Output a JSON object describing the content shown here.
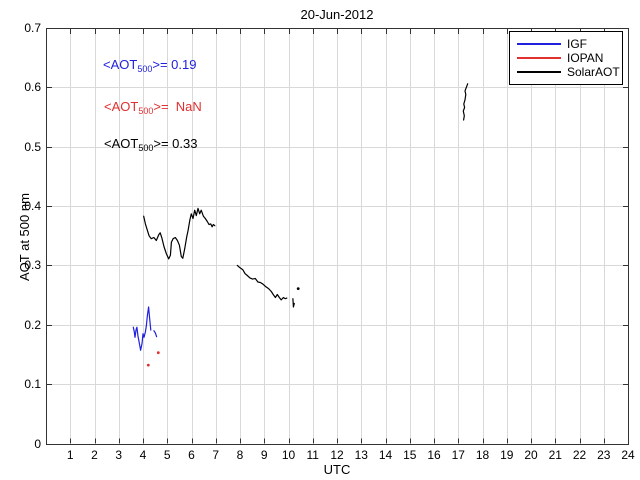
{
  "chart_data": {
    "type": "line",
    "title": "20-Jun-2012",
    "xlabel": "UTC",
    "ylabel": "AOT at 500 nm",
    "xlim": [
      0,
      24
    ],
    "ylim": [
      0,
      0.7
    ],
    "x_ticks": [
      1,
      2,
      3,
      4,
      5,
      6,
      7,
      8,
      9,
      10,
      11,
      12,
      13,
      14,
      15,
      16,
      17,
      18,
      19,
      20,
      21,
      22,
      23,
      24
    ],
    "y_ticks": [
      0,
      0.1,
      0.2,
      0.3,
      0.4,
      0.5,
      0.6,
      0.7
    ],
    "y_tick_labels": [
      "0",
      "0.1",
      "0.2",
      "0.3",
      "0.4",
      "0.5",
      "0.6",
      "0.7"
    ],
    "grid": true,
    "grid_color": "#d9d9d9",
    "axis_color": "#333333",
    "legend": {
      "position": "top-right",
      "items": [
        "IGF",
        "IOPAN",
        "SolarAOT"
      ]
    },
    "series": [
      {
        "name": "IGF",
        "color": "#2020dd",
        "segments": [
          [
            [
              3.6,
              0.196
            ],
            [
              3.64,
              0.188
            ],
            [
              3.67,
              0.179
            ],
            [
              3.71,
              0.191
            ],
            [
              3.75,
              0.196
            ],
            [
              3.79,
              0.182
            ],
            [
              3.84,
              0.171
            ],
            [
              3.88,
              0.162
            ],
            [
              3.9,
              0.157
            ],
            [
              3.96,
              0.168
            ],
            [
              4.0,
              0.185
            ],
            [
              4.04,
              0.179
            ],
            [
              4.1,
              0.188
            ],
            [
              4.14,
              0.199
            ],
            [
              4.18,
              0.216
            ],
            [
              4.23,
              0.23
            ],
            [
              4.27,
              0.213
            ],
            [
              4.32,
              0.191
            ]
          ],
          [
            [
              4.45,
              0.19
            ],
            [
              4.51,
              0.186
            ],
            [
              4.56,
              0.18
            ]
          ]
        ],
        "points": []
      },
      {
        "name": "IOPAN",
        "color": "#e03030",
        "segments": [],
        "points": [
          [
            4.22,
            0.132
          ],
          [
            4.63,
            0.153
          ]
        ]
      },
      {
        "name": "SolarAOT",
        "color": "#000000",
        "segments": [
          [
            [
              4.03,
              0.383
            ],
            [
              4.1,
              0.37
            ],
            [
              4.18,
              0.359
            ],
            [
              4.25,
              0.35
            ],
            [
              4.34,
              0.345
            ],
            [
              4.45,
              0.347
            ],
            [
              4.55,
              0.342
            ],
            [
              4.65,
              0.352
            ],
            [
              4.71,
              0.355
            ],
            [
              4.78,
              0.346
            ],
            [
              4.87,
              0.331
            ],
            [
              4.96,
              0.32
            ],
            [
              5.06,
              0.311
            ],
            [
              5.13,
              0.317
            ],
            [
              5.17,
              0.339
            ],
            [
              5.24,
              0.345
            ],
            [
              5.33,
              0.347
            ],
            [
              5.42,
              0.342
            ],
            [
              5.5,
              0.334
            ],
            [
              5.58,
              0.315
            ],
            [
              5.64,
              0.312
            ],
            [
              5.72,
              0.328
            ],
            [
              5.8,
              0.348
            ],
            [
              5.86,
              0.359
            ],
            [
              5.93,
              0.376
            ],
            [
              5.99,
              0.387
            ],
            [
              6.06,
              0.379
            ],
            [
              6.13,
              0.393
            ],
            [
              6.2,
              0.384
            ],
            [
              6.27,
              0.396
            ],
            [
              6.34,
              0.387
            ],
            [
              6.4,
              0.393
            ],
            [
              6.49,
              0.383
            ],
            [
              6.57,
              0.379
            ],
            [
              6.65,
              0.374
            ],
            [
              6.72,
              0.369
            ],
            [
              6.79,
              0.37
            ],
            [
              6.85,
              0.365
            ],
            [
              6.9,
              0.369
            ],
            [
              6.96,
              0.367
            ]
          ],
          [
            [
              7.89,
              0.3
            ],
            [
              8.0,
              0.296
            ],
            [
              8.11,
              0.293
            ],
            [
              8.21,
              0.286
            ],
            [
              8.3,
              0.283
            ],
            [
              8.41,
              0.279
            ],
            [
              8.52,
              0.277
            ],
            [
              8.63,
              0.278
            ],
            [
              8.74,
              0.272
            ],
            [
              8.85,
              0.271
            ],
            [
              8.96,
              0.268
            ],
            [
              9.07,
              0.264
            ],
            [
              9.18,
              0.261
            ],
            [
              9.29,
              0.256
            ],
            [
              9.37,
              0.251
            ],
            [
              9.46,
              0.246
            ],
            [
              9.54,
              0.251
            ],
            [
              9.62,
              0.246
            ],
            [
              9.7,
              0.242
            ],
            [
              9.79,
              0.246
            ],
            [
              9.87,
              0.244
            ],
            [
              9.93,
              0.245
            ]
          ],
          [
            [
              10.18,
              0.244
            ],
            [
              10.2,
              0.23
            ],
            [
              10.24,
              0.236
            ]
          ],
          [
            [
              17.22,
              0.545
            ],
            [
              17.25,
              0.552
            ],
            [
              17.21,
              0.56
            ],
            [
              17.26,
              0.566
            ],
            [
              17.23,
              0.572
            ],
            [
              17.28,
              0.579
            ],
            [
              17.31,
              0.588
            ],
            [
              17.28,
              0.594
            ],
            [
              17.33,
              0.6
            ],
            [
              17.39,
              0.606
            ]
          ]
        ],
        "points": [
          [
            10.4,
            0.261
          ]
        ]
      }
    ],
    "annotations": [
      {
        "series": "IGF",
        "prefix": "<AOT",
        "sub": "500",
        "suffix": ">= 0.19",
        "color": "#2020dd"
      },
      {
        "series": "IOPAN",
        "prefix": "<AOT",
        "sub": "500",
        "suffix": ">=  NaN",
        "color": "#e03030"
      },
      {
        "series": "SolarAOT",
        "prefix": "<AOT",
        "sub": "500",
        "suffix": ">= 0.33",
        "color": "#000000"
      }
    ]
  }
}
